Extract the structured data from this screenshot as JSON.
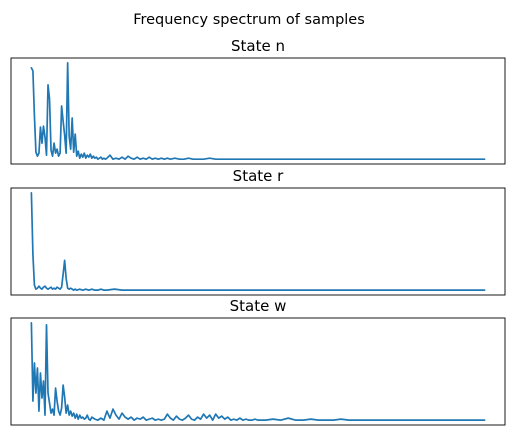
{
  "figure": {
    "suptitle": "Frequency spectrum of samples"
  },
  "chart_data": [
    {
      "type": "line",
      "title": "State n",
      "xlabel": "",
      "ylabel": "",
      "ticks_visible": false,
      "grid": false,
      "color": "#1f77b4",
      "x": [
        0,
        1,
        2,
        3,
        4,
        5,
        6,
        7,
        8,
        9,
        10,
        11,
        12,
        13,
        14,
        15,
        16,
        17,
        18,
        19,
        20,
        21,
        22,
        23,
        24,
        25,
        26,
        27,
        28,
        29,
        30,
        31,
        32,
        33,
        34,
        35,
        36,
        37,
        38,
        39,
        40,
        41,
        42,
        43,
        44,
        45,
        46,
        47,
        48,
        49,
        50,
        52,
        54,
        56,
        58,
        60,
        62,
        64,
        66,
        68,
        70,
        72,
        74,
        76,
        78,
        80,
        82,
        84,
        86,
        88,
        90,
        92,
        95,
        98,
        101,
        104,
        107,
        110,
        114,
        118,
        122,
        126,
        130,
        135,
        140,
        145,
        150,
        155,
        160,
        165,
        170,
        175,
        180,
        185,
        190,
        195,
        200,
        205,
        210,
        215,
        220,
        225,
        230,
        235,
        240,
        245,
        250,
        255,
        260,
        265,
        270,
        275,
        280,
        285,
        290,
        295,
        300
      ],
      "y": [
        0.93,
        0.9,
        0.45,
        0.09,
        0.05,
        0.08,
        0.34,
        0.18,
        0.35,
        0.24,
        0.06,
        0.76,
        0.62,
        0.11,
        0.05,
        0.18,
        0.08,
        0.12,
        0.05,
        0.08,
        0.55,
        0.4,
        0.26,
        0.08,
        0.98,
        0.25,
        0.12,
        0.43,
        0.09,
        0.27,
        0.05,
        0.1,
        0.03,
        0.07,
        0.04,
        0.08,
        0.03,
        0.06,
        0.04,
        0.07,
        0.03,
        0.05,
        0.03,
        0.04,
        0.02,
        0.03,
        0.04,
        0.02,
        0.03,
        0.02,
        0.03,
        0.06,
        0.02,
        0.03,
        0.02,
        0.04,
        0.02,
        0.05,
        0.03,
        0.02,
        0.04,
        0.02,
        0.03,
        0.02,
        0.04,
        0.02,
        0.03,
        0.02,
        0.03,
        0.02,
        0.03,
        0.02,
        0.03,
        0.02,
        0.02,
        0.03,
        0.02,
        0.02,
        0.02,
        0.03,
        0.02,
        0.02,
        0.02,
        0.02,
        0.02,
        0.02,
        0.02,
        0.02,
        0.02,
        0.02,
        0.02,
        0.02,
        0.02,
        0.02,
        0.02,
        0.02,
        0.02,
        0.02,
        0.02,
        0.02,
        0.02,
        0.02,
        0.02,
        0.02,
        0.02,
        0.02,
        0.02,
        0.02,
        0.02,
        0.02,
        0.02,
        0.02,
        0.02,
        0.02,
        0.02,
        0.02,
        0.02
      ]
    },
    {
      "type": "line",
      "title": "State r",
      "xlabel": "",
      "ylabel": "",
      "ticks_visible": false,
      "grid": false,
      "color": "#1f77b4",
      "x": [
        0,
        1,
        2,
        3,
        4,
        5,
        6,
        7,
        8,
        9,
        10,
        11,
        12,
        13,
        14,
        15,
        16,
        17,
        18,
        19,
        20,
        21,
        22,
        23,
        24,
        25,
        26,
        27,
        28,
        29,
        30,
        32,
        34,
        36,
        38,
        40,
        42,
        44,
        46,
        48,
        50,
        55,
        60,
        65,
        70,
        75,
        80,
        85,
        90,
        95,
        100,
        110,
        120,
        130,
        140,
        150,
        160,
        170,
        180,
        190,
        200,
        210,
        220,
        230,
        240,
        250,
        260,
        270,
        280,
        290,
        300
      ],
      "y": [
        1.0,
        0.38,
        0.07,
        0.03,
        0.04,
        0.06,
        0.04,
        0.03,
        0.05,
        0.06,
        0.04,
        0.03,
        0.04,
        0.05,
        0.03,
        0.04,
        0.03,
        0.05,
        0.04,
        0.03,
        0.05,
        0.18,
        0.32,
        0.14,
        0.04,
        0.03,
        0.04,
        0.03,
        0.02,
        0.03,
        0.02,
        0.03,
        0.02,
        0.03,
        0.02,
        0.03,
        0.02,
        0.02,
        0.03,
        0.02,
        0.02,
        0.03,
        0.02,
        0.02,
        0.02,
        0.02,
        0.02,
        0.02,
        0.02,
        0.02,
        0.02,
        0.02,
        0.02,
        0.02,
        0.02,
        0.02,
        0.02,
        0.02,
        0.02,
        0.02,
        0.02,
        0.02,
        0.02,
        0.02,
        0.02,
        0.02,
        0.02,
        0.02,
        0.02,
        0.02,
        0.02
      ]
    },
    {
      "type": "line",
      "title": "State w",
      "xlabel": "",
      "ylabel": "",
      "ticks_visible": false,
      "grid": false,
      "color": "#1f77b4",
      "x": [
        0,
        1,
        2,
        3,
        4,
        5,
        6,
        7,
        8,
        9,
        10,
        11,
        12,
        13,
        14,
        15,
        16,
        17,
        18,
        19,
        20,
        21,
        22,
        23,
        24,
        25,
        26,
        27,
        28,
        29,
        30,
        31,
        32,
        33,
        34,
        35,
        36,
        37,
        38,
        39,
        40,
        42,
        44,
        46,
        48,
        50,
        52,
        54,
        56,
        58,
        60,
        62,
        64,
        66,
        68,
        70,
        72,
        74,
        76,
        78,
        80,
        82,
        84,
        86,
        88,
        90,
        92,
        94,
        96,
        98,
        100,
        102,
        104,
        106,
        108,
        110,
        112,
        114,
        116,
        118,
        120,
        122,
        124,
        126,
        128,
        130,
        132,
        134,
        136,
        138,
        140,
        142,
        144,
        146,
        148,
        150,
        155,
        160,
        165,
        170,
        175,
        180,
        185,
        190,
        195,
        200,
        205,
        210,
        215,
        220,
        225,
        230,
        235,
        240,
        245,
        250,
        255,
        260,
        265,
        270,
        275,
        280,
        285,
        290,
        295,
        300
      ],
      "y": [
        1.0,
        0.22,
        0.6,
        0.3,
        0.55,
        0.12,
        0.5,
        0.25,
        0.42,
        0.08,
        0.98,
        0.3,
        0.2,
        0.1,
        0.14,
        0.08,
        0.35,
        0.22,
        0.12,
        0.08,
        0.15,
        0.38,
        0.26,
        0.1,
        0.18,
        0.08,
        0.12,
        0.07,
        0.1,
        0.05,
        0.09,
        0.04,
        0.08,
        0.05,
        0.06,
        0.04,
        0.05,
        0.08,
        0.04,
        0.03,
        0.06,
        0.04,
        0.03,
        0.05,
        0.03,
        0.12,
        0.05,
        0.14,
        0.08,
        0.04,
        0.1,
        0.06,
        0.04,
        0.06,
        0.03,
        0.05,
        0.04,
        0.06,
        0.03,
        0.04,
        0.05,
        0.03,
        0.04,
        0.03,
        0.04,
        0.09,
        0.05,
        0.03,
        0.07,
        0.04,
        0.03,
        0.05,
        0.08,
        0.04,
        0.03,
        0.06,
        0.04,
        0.09,
        0.05,
        0.08,
        0.03,
        0.09,
        0.05,
        0.07,
        0.04,
        0.06,
        0.03,
        0.04,
        0.03,
        0.05,
        0.03,
        0.04,
        0.03,
        0.03,
        0.04,
        0.03,
        0.03,
        0.04,
        0.03,
        0.05,
        0.03,
        0.03,
        0.04,
        0.03,
        0.03,
        0.03,
        0.04,
        0.03,
        0.03,
        0.03,
        0.03,
        0.03,
        0.03,
        0.03,
        0.03,
        0.03,
        0.03,
        0.03,
        0.03,
        0.03,
        0.03,
        0.03,
        0.03,
        0.03,
        0.03,
        0.03
      ]
    }
  ]
}
